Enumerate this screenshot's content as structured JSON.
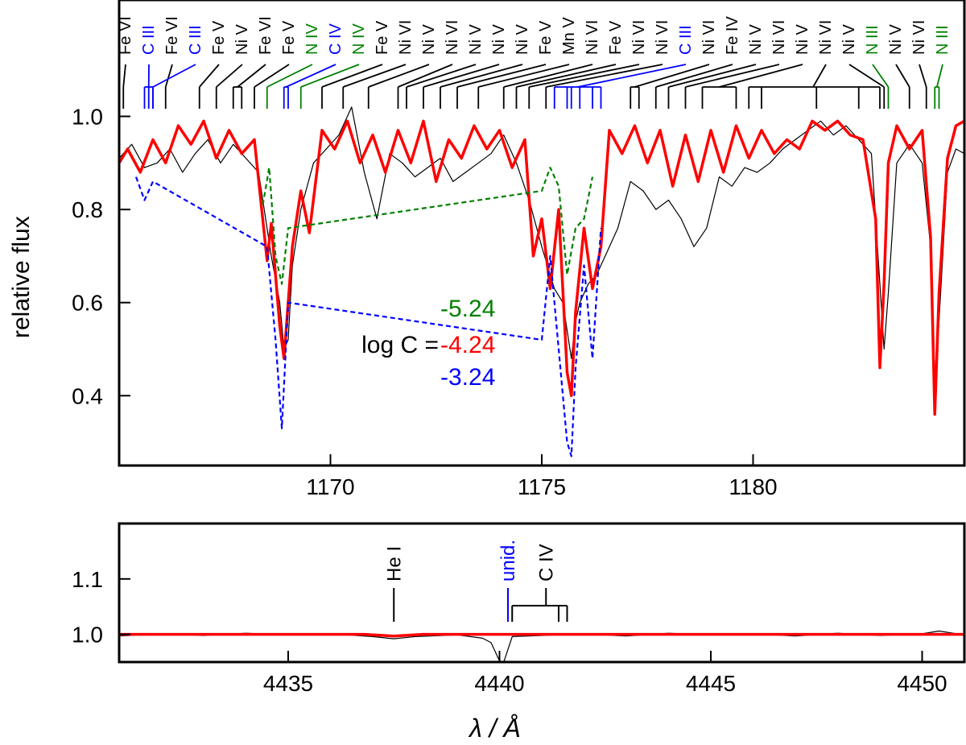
{
  "chart_data": [
    {
      "type": "line",
      "panel": "top",
      "ylabel": "relative flux",
      "xlim": [
        1165,
        1185
      ],
      "ylim": [
        0.25,
        1.25
      ],
      "xticks": [
        1170,
        1175,
        1180
      ],
      "yticks": [
        0.4,
        0.6,
        0.8,
        1.0
      ],
      "ytick_labels": [
        "0.4",
        "0.6",
        "0.8",
        "1.0"
      ],
      "colors": {
        "observed": "#000000",
        "model": "#ff0000",
        "low": "#008000",
        "high": "#0000ff"
      },
      "annotation": {
        "prefix": "log C = ",
        "values": [
          {
            "text": "-5.24",
            "color": "#008000"
          },
          {
            "text": "-4.24",
            "color": "#ff0000"
          },
          {
            "text": "-3.24",
            "color": "#0000ff"
          }
        ]
      },
      "line_ids": [
        {
          "label": "Fe VI",
          "color": "#000000",
          "x": [
            1165.1
          ]
        },
        {
          "label": "C III",
          "color": "#0000ff",
          "x": [
            1165.6,
            1165.7,
            1165.8
          ]
        },
        {
          "label": "Fe VI",
          "color": "#000000",
          "x": [
            1166.1
          ]
        },
        {
          "label": "C III",
          "color": "#0000ff",
          "x": [
            1165.8
          ]
        },
        {
          "label": "Fe V",
          "color": "#000000",
          "x": [
            1166.9
          ]
        },
        {
          "label": "Ni V",
          "color": "#000000",
          "x": [
            1167.3
          ]
        },
        {
          "label": "Fe VI",
          "color": "#000000",
          "x": [
            1167.7,
            1167.9
          ]
        },
        {
          "label": "Fe V",
          "color": "#000000",
          "x": [
            1168.2
          ]
        },
        {
          "label": "N IV",
          "color": "#008000",
          "x": [
            1168.5
          ]
        },
        {
          "label": "C IV",
          "color": "#0000ff",
          "x": [
            1168.9,
            1169.0
          ]
        },
        {
          "label": "N IV",
          "color": "#008000",
          "x": [
            1169.3
          ]
        },
        {
          "label": "Fe V",
          "color": "#000000",
          "x": [
            1169.8
          ]
        },
        {
          "label": "Ni VI",
          "color": "#000000",
          "x": [
            1170.3
          ]
        },
        {
          "label": "Ni V",
          "color": "#000000",
          "x": [
            1170.9
          ]
        },
        {
          "label": "Ni VI",
          "color": "#000000",
          "x": [
            1171.6
          ]
        },
        {
          "label": "Ni V",
          "color": "#000000",
          "x": [
            1171.8
          ]
        },
        {
          "label": "Ni V",
          "color": "#000000",
          "x": [
            1172.2
          ]
        },
        {
          "label": "Ni V",
          "color": "#000000",
          "x": [
            1172.6
          ]
        },
        {
          "label": "Fe V",
          "color": "#000000",
          "x": [
            1173.0
          ]
        },
        {
          "label": "Mn V",
          "color": "#000000",
          "x": [
            1173.5
          ]
        },
        {
          "label": "Ni VI",
          "color": "#000000",
          "x": [
            1174.1
          ]
        },
        {
          "label": "Fe V",
          "color": "#000000",
          "x": [
            1174.4
          ]
        },
        {
          "label": "Ni VI",
          "color": "#000000",
          "x": [
            1174.7
          ]
        },
        {
          "label": "Ni VI",
          "color": "#000000",
          "x": [
            1175.1
          ]
        },
        {
          "label": "C III",
          "color": "#0000ff",
          "x": [
            1175.3,
            1175.6,
            1175.7,
            1175.9,
            1176.2,
            1176.4
          ]
        },
        {
          "label": "Ni VI",
          "color": "#000000",
          "x": [
            1177.1,
            1177.3
          ]
        },
        {
          "label": "Fe IV",
          "color": "#000000",
          "x": [
            1177.7
          ]
        },
        {
          "label": "Ni V",
          "color": "#000000",
          "x": [
            1178.0
          ]
        },
        {
          "label": "Ni VI",
          "color": "#000000",
          "x": [
            1178.4
          ]
        },
        {
          "label": "Ni V",
          "color": "#000000",
          "x": [
            1178.8,
            1179.6
          ]
        },
        {
          "label": "Ni VI",
          "color": "#000000",
          "x": [
            1179.9,
            1180.2,
            1181.5,
            1182.5,
            1183.0
          ]
        },
        {
          "label": "Ni V",
          "color": "#000000",
          "x": [
            1183.1
          ]
        },
        {
          "label": "N III",
          "color": "#008000",
          "x": [
            1183.2
          ]
        },
        {
          "label": "Ni V",
          "color": "#000000",
          "x": [
            1183.7
          ]
        },
        {
          "label": "Ni VI",
          "color": "#000000",
          "x": [
            1184.1
          ]
        },
        {
          "label": "N III",
          "color": "#008000",
          "x": [
            1184.3,
            1184.4
          ]
        }
      ],
      "series": [
        {
          "color": "#000000",
          "x": [
            1165.0,
            1165.3,
            1165.6,
            1165.9,
            1166.2,
            1166.5,
            1166.8,
            1167.1,
            1167.4,
            1167.7,
            1168.0,
            1168.3,
            1168.6,
            1168.8,
            1168.9,
            1169.0,
            1169.1,
            1169.3,
            1169.6,
            1169.9,
            1170.2,
            1170.5,
            1170.8,
            1171.1,
            1171.4,
            1171.7,
            1172.0,
            1172.3,
            1172.6,
            1172.9,
            1173.2,
            1173.5,
            1173.8,
            1174.1,
            1174.4,
            1174.7,
            1175.0,
            1175.3,
            1175.5,
            1175.6,
            1175.7,
            1175.8,
            1175.9,
            1176.1,
            1176.3,
            1176.5,
            1176.8,
            1177.1,
            1177.4,
            1177.7,
            1178.0,
            1178.3,
            1178.6,
            1178.9,
            1179.2,
            1179.5,
            1179.8,
            1180.1,
            1180.4,
            1180.7,
            1181.0,
            1181.3,
            1181.6,
            1181.9,
            1182.2,
            1182.5,
            1182.8,
            1183.0,
            1183.1,
            1183.2,
            1183.4,
            1183.7,
            1184.0,
            1184.2,
            1184.3,
            1184.4,
            1184.6,
            1184.8,
            1185.0
          ],
          "y": [
            0.91,
            0.94,
            0.89,
            0.9,
            0.93,
            0.88,
            0.92,
            0.95,
            0.9,
            0.94,
            0.91,
            0.88,
            0.7,
            0.6,
            0.5,
            0.52,
            0.68,
            0.8,
            0.9,
            0.93,
            0.96,
            1.02,
            0.88,
            0.78,
            0.92,
            0.9,
            0.87,
            0.89,
            0.91,
            0.86,
            0.88,
            0.9,
            0.92,
            0.96,
            0.9,
            0.82,
            0.72,
            0.63,
            0.6,
            0.54,
            0.48,
            0.56,
            0.6,
            0.64,
            0.66,
            0.7,
            0.76,
            0.86,
            0.84,
            0.8,
            0.82,
            0.78,
            0.72,
            0.76,
            0.87,
            0.85,
            0.89,
            0.88,
            0.9,
            0.93,
            0.95,
            0.97,
            0.99,
            0.96,
            0.98,
            0.95,
            0.92,
            0.64,
            0.5,
            0.62,
            0.9,
            0.94,
            0.9,
            0.72,
            0.42,
            0.56,
            0.88,
            0.93,
            0.92
          ]
        },
        {
          "color": "#ff0000",
          "x": [
            1165.0,
            1165.2,
            1165.5,
            1165.8,
            1166.1,
            1166.4,
            1166.7,
            1167.0,
            1167.3,
            1167.6,
            1167.9,
            1168.2,
            1168.5,
            1168.6,
            1168.8,
            1168.9,
            1169.1,
            1169.3,
            1169.5,
            1169.8,
            1170.1,
            1170.4,
            1170.7,
            1171.0,
            1171.3,
            1171.6,
            1171.9,
            1172.2,
            1172.5,
            1172.8,
            1173.1,
            1173.4,
            1173.7,
            1174.0,
            1174.3,
            1174.6,
            1174.8,
            1175.0,
            1175.2,
            1175.4,
            1175.6,
            1175.7,
            1175.8,
            1176.0,
            1176.2,
            1176.4,
            1176.6,
            1176.9,
            1177.2,
            1177.5,
            1177.8,
            1178.1,
            1178.4,
            1178.7,
            1179.0,
            1179.3,
            1179.6,
            1179.9,
            1180.2,
            1180.5,
            1180.8,
            1181.1,
            1181.4,
            1181.7,
            1182.0,
            1182.3,
            1182.6,
            1182.9,
            1183.0,
            1183.1,
            1183.2,
            1183.4,
            1183.7,
            1184.0,
            1184.2,
            1184.3,
            1184.4,
            1184.6,
            1184.8,
            1185.0
          ],
          "y": [
            0.9,
            0.93,
            0.88,
            0.95,
            0.9,
            0.98,
            0.94,
            0.99,
            0.91,
            0.97,
            0.92,
            0.95,
            0.69,
            0.77,
            0.55,
            0.48,
            0.72,
            0.84,
            0.75,
            0.97,
            0.93,
            0.99,
            0.9,
            0.96,
            0.88,
            0.97,
            0.9,
            0.99,
            0.86,
            0.95,
            0.91,
            0.98,
            0.93,
            0.97,
            0.89,
            0.95,
            0.7,
            0.78,
            0.63,
            0.8,
            0.45,
            0.4,
            0.58,
            0.76,
            0.63,
            0.72,
            0.97,
            0.92,
            0.98,
            0.9,
            0.97,
            0.85,
            0.96,
            0.86,
            0.97,
            0.88,
            0.98,
            0.91,
            0.97,
            0.92,
            0.95,
            0.93,
            0.99,
            0.97,
            0.99,
            0.96,
            0.95,
            0.78,
            0.46,
            0.64,
            0.9,
            0.98,
            0.93,
            0.97,
            0.74,
            0.36,
            0.62,
            0.91,
            0.98,
            0.99
          ]
        },
        {
          "color": "#008000",
          "dashed": true,
          "x": [
            1168.4,
            1168.55,
            1168.7,
            1168.85,
            1169.0,
            1175.0,
            1175.2,
            1175.4,
            1175.6,
            1175.8,
            1176.0,
            1176.2
          ],
          "y": [
            0.81,
            0.89,
            0.7,
            0.64,
            0.76,
            0.84,
            0.89,
            0.85,
            0.66,
            0.76,
            0.78,
            0.87
          ]
        },
        {
          "color": "#0000ff",
          "dashed": true,
          "x": [
            1165.4,
            1165.6,
            1165.8,
            1168.5,
            1168.7,
            1168.85,
            1169.0,
            1175.0,
            1175.2,
            1175.4,
            1175.6,
            1175.7,
            1175.8,
            1176.0,
            1176.2,
            1176.4
          ],
          "y": [
            0.87,
            0.82,
            0.86,
            0.72,
            0.52,
            0.33,
            0.6,
            0.52,
            0.7,
            0.5,
            0.3,
            0.27,
            0.46,
            0.68,
            0.48,
            0.76
          ]
        }
      ]
    },
    {
      "type": "line",
      "panel": "bottom",
      "xlabel": "λ / Å",
      "xlim": [
        4431,
        4451
      ],
      "ylim": [
        0.95,
        1.2
      ],
      "xticks": [
        4435,
        4440,
        4445,
        4450
      ],
      "yticks": [
        1.0,
        1.1
      ],
      "ytick_labels": [
        "1.0",
        "1.1"
      ],
      "line_ids": [
        {
          "label": "He I",
          "color": "#000000",
          "x": [
            4437.5
          ]
        },
        {
          "label": "unid.",
          "color": "#0000ff",
          "x": [
            4440.2
          ]
        },
        {
          "label": "C IV",
          "color": "#000000",
          "x": [
            4440.3,
            4441.4,
            4441.6
          ]
        }
      ],
      "series": [
        {
          "color": "#000000",
          "x": [
            4431.0,
            4432.0,
            4433.0,
            4434.0,
            4435.0,
            4436.0,
            4437.0,
            4437.5,
            4438.0,
            4439.0,
            4439.6,
            4439.8,
            4440.0,
            4440.1,
            4440.3,
            4441.0,
            4442.0,
            4443.0,
            4444.0,
            4445.0,
            4446.0,
            4447.0,
            4448.0,
            4449.0,
            4450.0,
            4450.4,
            4451.0
          ],
          "y": [
            0.997,
            1.001,
            0.998,
            1.002,
            0.999,
            1.001,
            0.996,
            0.992,
            0.996,
            0.999,
            0.993,
            0.985,
            0.952,
            0.95,
            0.996,
            0.998,
            1.001,
            0.997,
            1.002,
            0.999,
            1.001,
            0.997,
            1.002,
            0.998,
            1.001,
            1.006,
            0.999
          ]
        },
        {
          "color": "#ff0000",
          "x": [
            4431.0,
            4436.8,
            4437.5,
            4438.2,
            4451.0
          ],
          "y": [
            1.0,
            1.0,
            0.997,
            1.0,
            1.0
          ]
        }
      ]
    }
  ]
}
